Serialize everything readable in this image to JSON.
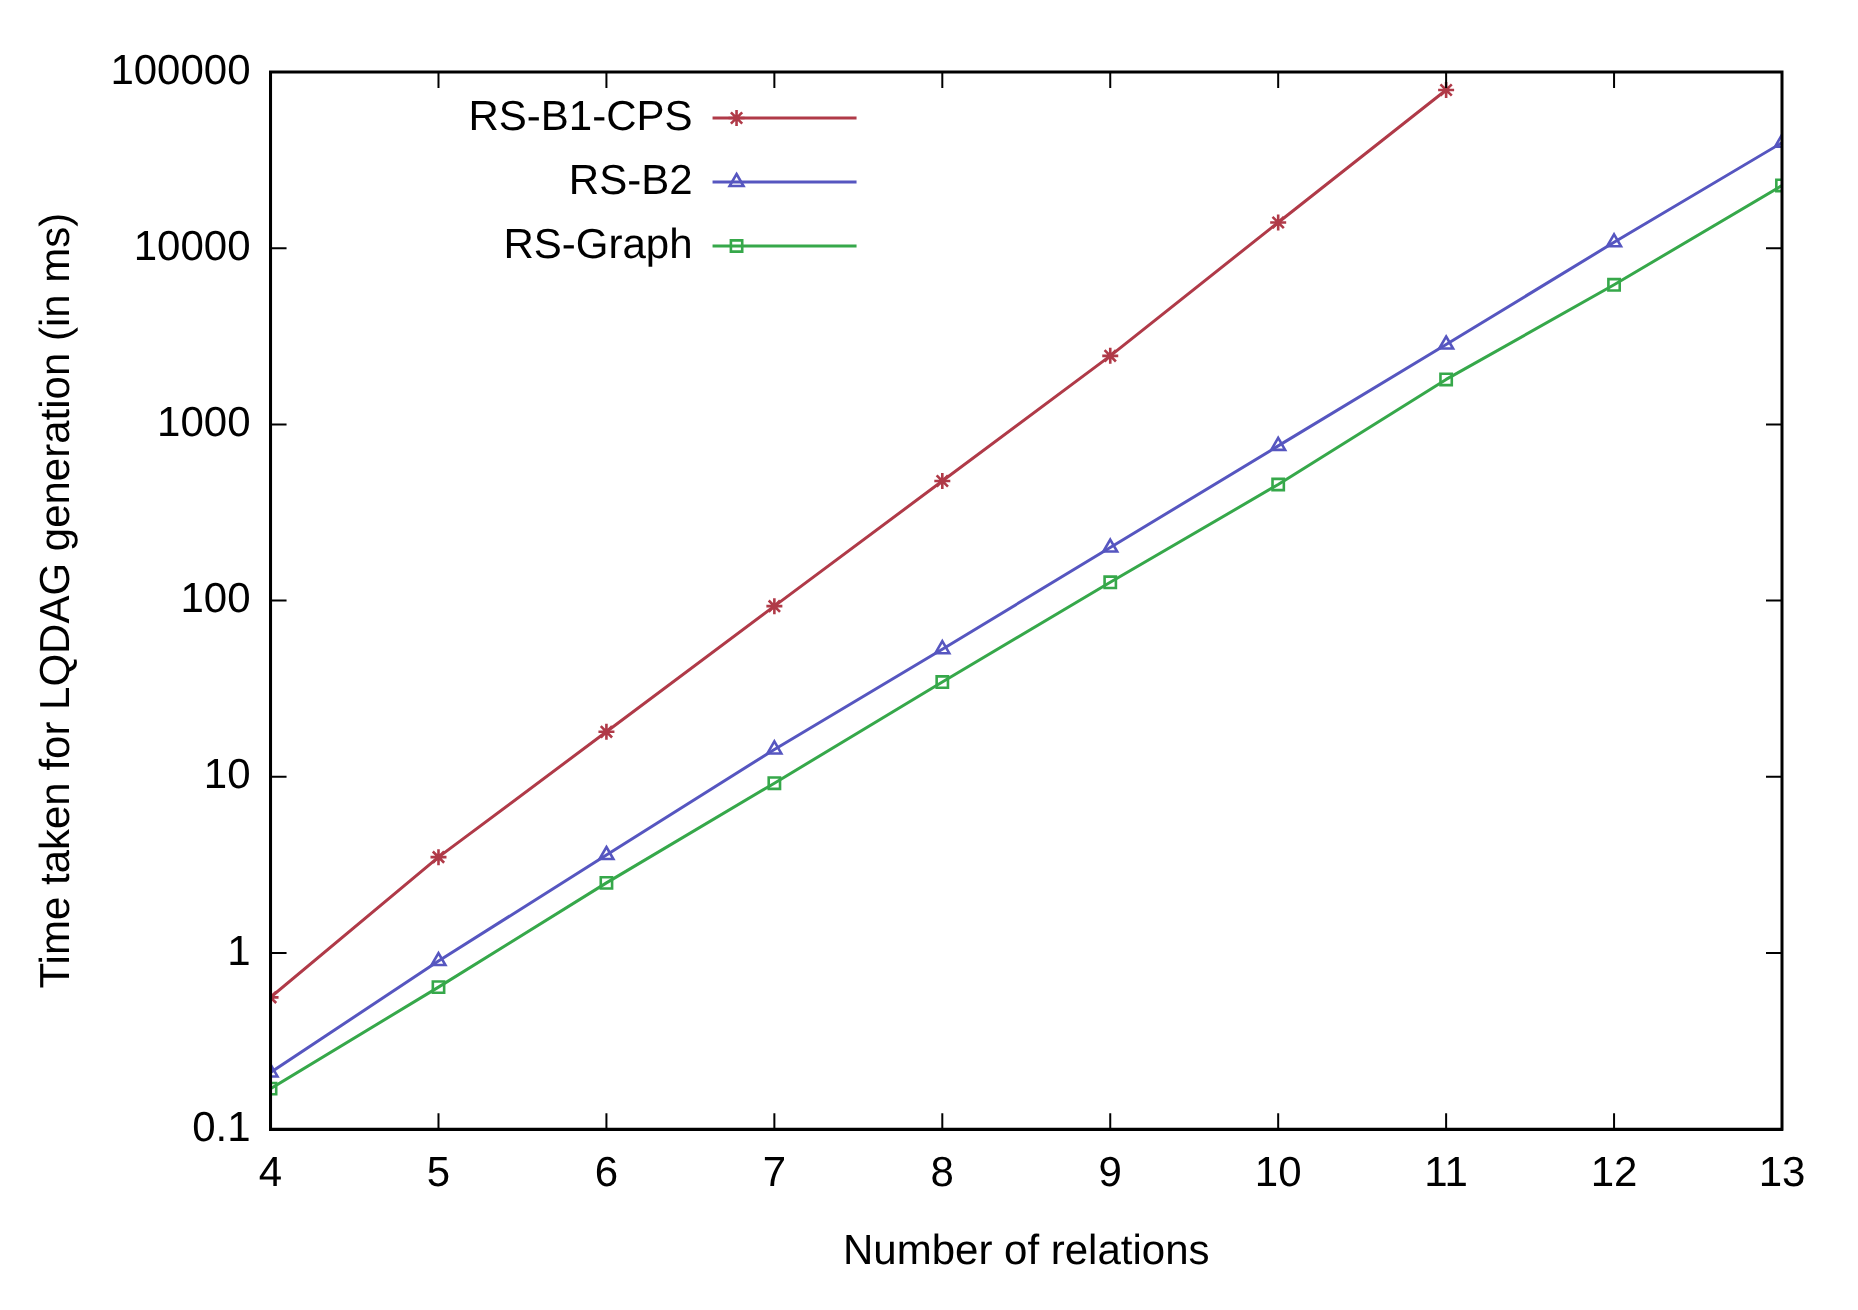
{
  "chart_data": {
    "type": "line",
    "xlabel": "Number of relations",
    "ylabel": "Time taken for LQDAG generation (in ms)",
    "x": [
      4,
      5,
      6,
      7,
      8,
      9,
      10,
      11,
      12,
      13
    ],
    "series": [
      {
        "name": "RS-B1-CPS",
        "color": "#b03a48",
        "marker": "cross",
        "values": [
          0.56,
          3.5,
          18,
          93,
          477,
          2450,
          14000,
          79000,
          null,
          null
        ]
      },
      {
        "name": "RS-B2",
        "color": "#5656c0",
        "marker": "triangle",
        "values": [
          0.21,
          0.9,
          3.6,
          14.3,
          53,
          200,
          755,
          2840,
          10800,
          39700
        ]
      },
      {
        "name": "RS-Graph",
        "color": "#36a84a",
        "marker": "square",
        "values": [
          0.17,
          0.64,
          2.5,
          9.2,
          34.5,
          127,
          456,
          1800,
          6200,
          22700
        ]
      }
    ],
    "log": "y",
    "xlim": [
      4,
      13
    ],
    "ylim": [
      0.1,
      100000
    ],
    "xticks": [
      4,
      5,
      6,
      7,
      8,
      9,
      10,
      11,
      12,
      13
    ],
    "yticks": [
      0.1,
      1,
      10,
      100,
      1000,
      10000,
      100000
    ],
    "grid": false,
    "legend": "top left",
    "line_style": "solid"
  }
}
